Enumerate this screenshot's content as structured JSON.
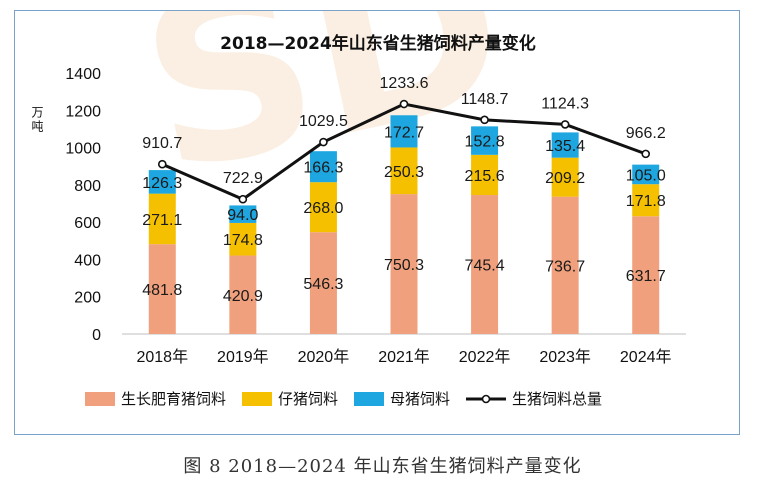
{
  "chart_data": {
    "type": "bar",
    "title": "2018—2024年山东省生猪饲料产量变化",
    "ylabel": "万吨",
    "xlabel": "",
    "ylim": [
      0,
      1400
    ],
    "yticks": [
      0,
      200,
      400,
      600,
      800,
      1000,
      1200,
      1400
    ],
    "categories": [
      "2018年",
      "2019年",
      "2020年",
      "2021年",
      "2022年",
      "2023年",
      "2024年"
    ],
    "series": [
      {
        "name": "生长肥育猪饲料",
        "type": "bar",
        "color": "#f0a07c",
        "values": [
          481.8,
          420.9,
          546.3,
          750.3,
          745.4,
          736.7,
          631.7
        ]
      },
      {
        "name": "仔猪饲料",
        "type": "bar",
        "color": "#f5c000",
        "values": [
          271.1,
          174.8,
          268.0,
          250.3,
          215.6,
          209.2,
          171.8
        ]
      },
      {
        "name": "母猪饲料",
        "type": "bar",
        "color": "#1ea6e0",
        "values": [
          126.3,
          94.0,
          166.3,
          172.7,
          152.8,
          135.4,
          105.0
        ]
      },
      {
        "name": "生猪饲料总量",
        "type": "line",
        "color": "#111111",
        "values": [
          910.7,
          722.9,
          1029.5,
          1233.6,
          1148.7,
          1124.3,
          966.2
        ]
      }
    ],
    "legend_position": "bottom",
    "grid": false,
    "watermark": "SD"
  },
  "caption": "图 8   2018—2024 年山东省生猪饲料产量变化"
}
